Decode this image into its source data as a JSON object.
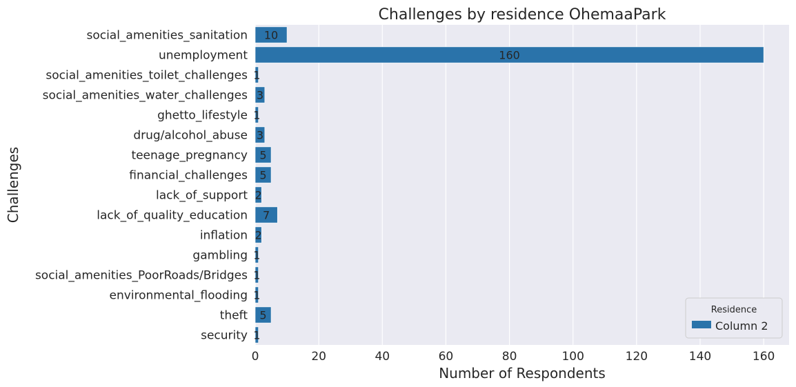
{
  "chart_data": {
    "type": "bar",
    "orientation": "horizontal",
    "title": "Challenges by residence OhemaaPark",
    "xlabel": "Number of Respondents",
    "ylabel": "Challenges",
    "xlim": [
      0,
      168
    ],
    "xticks": [
      0,
      20,
      40,
      60,
      80,
      100,
      120,
      140,
      160
    ],
    "grid": true,
    "categories": [
      "social_amenities_sanitation",
      "unemployment",
      "social_amenities_toilet_challenges",
      "social_amenities_water_challenges",
      "ghetto_lifestyle",
      "drug/alcohol_abuse",
      "teenage_pregnancy",
      "financial_challenges",
      "lack_of_support",
      "lack_of_quality_education",
      "inflation",
      "gambling",
      "social_amenities_PoorRoads/Bridges",
      "environmental_flooding",
      "theft",
      "security"
    ],
    "series": [
      {
        "name": "Column 2",
        "color": "#2a73aa",
        "values": [
          10,
          160,
          1,
          3,
          1,
          3,
          5,
          5,
          2,
          7,
          2,
          1,
          1,
          1,
          5,
          1
        ]
      }
    ],
    "legend": {
      "title": "Residence",
      "position": "lower-right"
    },
    "background": "#eaeaf2"
  }
}
